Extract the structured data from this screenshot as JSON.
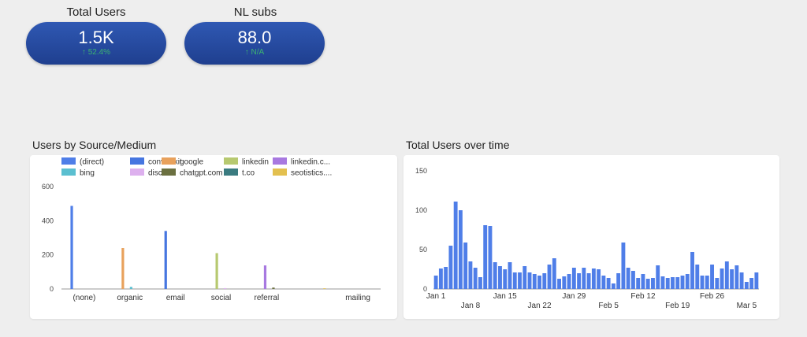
{
  "kpis": [
    {
      "title": "Total Users",
      "value": "1.5K",
      "delta": "↑ 52.4%"
    },
    {
      "title": "NL subs",
      "value": "88.0",
      "delta": "↑ N/A"
    }
  ],
  "colors": {
    "(direct)": "#4f7ee8",
    "convertkit": "#4676e0",
    "google": "#e8a15c",
    "linkedin": "#b7c970",
    "linkedin.c...": "#a879e0",
    "bing": "#5bbfd0",
    "discord": "#ddb0ee",
    "chatgpt.com": "#6b7040",
    "t.co": "#3a7b80",
    "seotistics....": "#e3c04f",
    "timeseries": "#4f7ee8"
  },
  "chart_data": [
    {
      "type": "bar",
      "title": "Users by Source/Medium",
      "categories": [
        "(none)",
        "organic",
        "email",
        "social",
        "referral",
        "",
        "mailing"
      ],
      "legend": [
        "(direct)",
        "convertkit",
        "google",
        "linkedin",
        "linkedin.c...",
        "bing",
        "discord",
        "chatgpt.com",
        "t.co",
        "seotistics...."
      ],
      "legend_position": "top",
      "ylim": [
        0,
        600
      ],
      "yticks": [
        0,
        200,
        400,
        600
      ],
      "series": [
        {
          "name": "(direct)",
          "values": [
            487,
            0,
            0,
            0,
            0,
            0,
            0
          ]
        },
        {
          "name": "convertkit",
          "values": [
            0,
            0,
            340,
            0,
            0,
            0,
            0
          ]
        },
        {
          "name": "google",
          "values": [
            0,
            240,
            0,
            0,
            0,
            0,
            0
          ]
        },
        {
          "name": "linkedin",
          "values": [
            0,
            0,
            0,
            210,
            0,
            0,
            0
          ]
        },
        {
          "name": "linkedin.c...",
          "values": [
            0,
            0,
            0,
            0,
            138,
            0,
            0
          ]
        },
        {
          "name": "bing",
          "values": [
            0,
            12,
            0,
            0,
            0,
            0,
            0
          ]
        },
        {
          "name": "discord",
          "values": [
            0,
            0,
            0,
            5,
            0,
            0,
            0
          ]
        },
        {
          "name": "chatgpt.com",
          "values": [
            0,
            0,
            0,
            0,
            8,
            0,
            0
          ]
        },
        {
          "name": "t.co",
          "values": [
            0,
            0,
            0,
            0,
            0,
            0,
            0
          ]
        },
        {
          "name": "seotistics....",
          "values": [
            0,
            0,
            0,
            0,
            0,
            4,
            0
          ]
        }
      ]
    },
    {
      "type": "bar",
      "title": "Total Users over time",
      "ylim": [
        0,
        150
      ],
      "yticks": [
        0,
        50,
        100,
        150
      ],
      "xtick_labels": [
        "Jan 1",
        "Jan 8",
        "Jan 15",
        "Jan 22",
        "Jan 29",
        "Feb 5",
        "Feb 12",
        "Feb 19",
        "Feb 26",
        "Mar 5"
      ],
      "xtick_index": [
        0,
        7,
        14,
        21,
        28,
        35,
        42,
        49,
        56,
        63
      ],
      "x_start": "Jan 1",
      "values": [
        17,
        26,
        28,
        55,
        111,
        100,
        59,
        35,
        27,
        15,
        81,
        80,
        34,
        29,
        25,
        34,
        21,
        21,
        29,
        21,
        19,
        17,
        20,
        31,
        39,
        13,
        16,
        19,
        27,
        20,
        27,
        20,
        26,
        25,
        17,
        14,
        7,
        20,
        59,
        27,
        23,
        14,
        19,
        13,
        14,
        30,
        16,
        14,
        15,
        15,
        17,
        19,
        47,
        31,
        17,
        17,
        31,
        14,
        26,
        35,
        25,
        30,
        21,
        9,
        14,
        21
      ]
    }
  ]
}
